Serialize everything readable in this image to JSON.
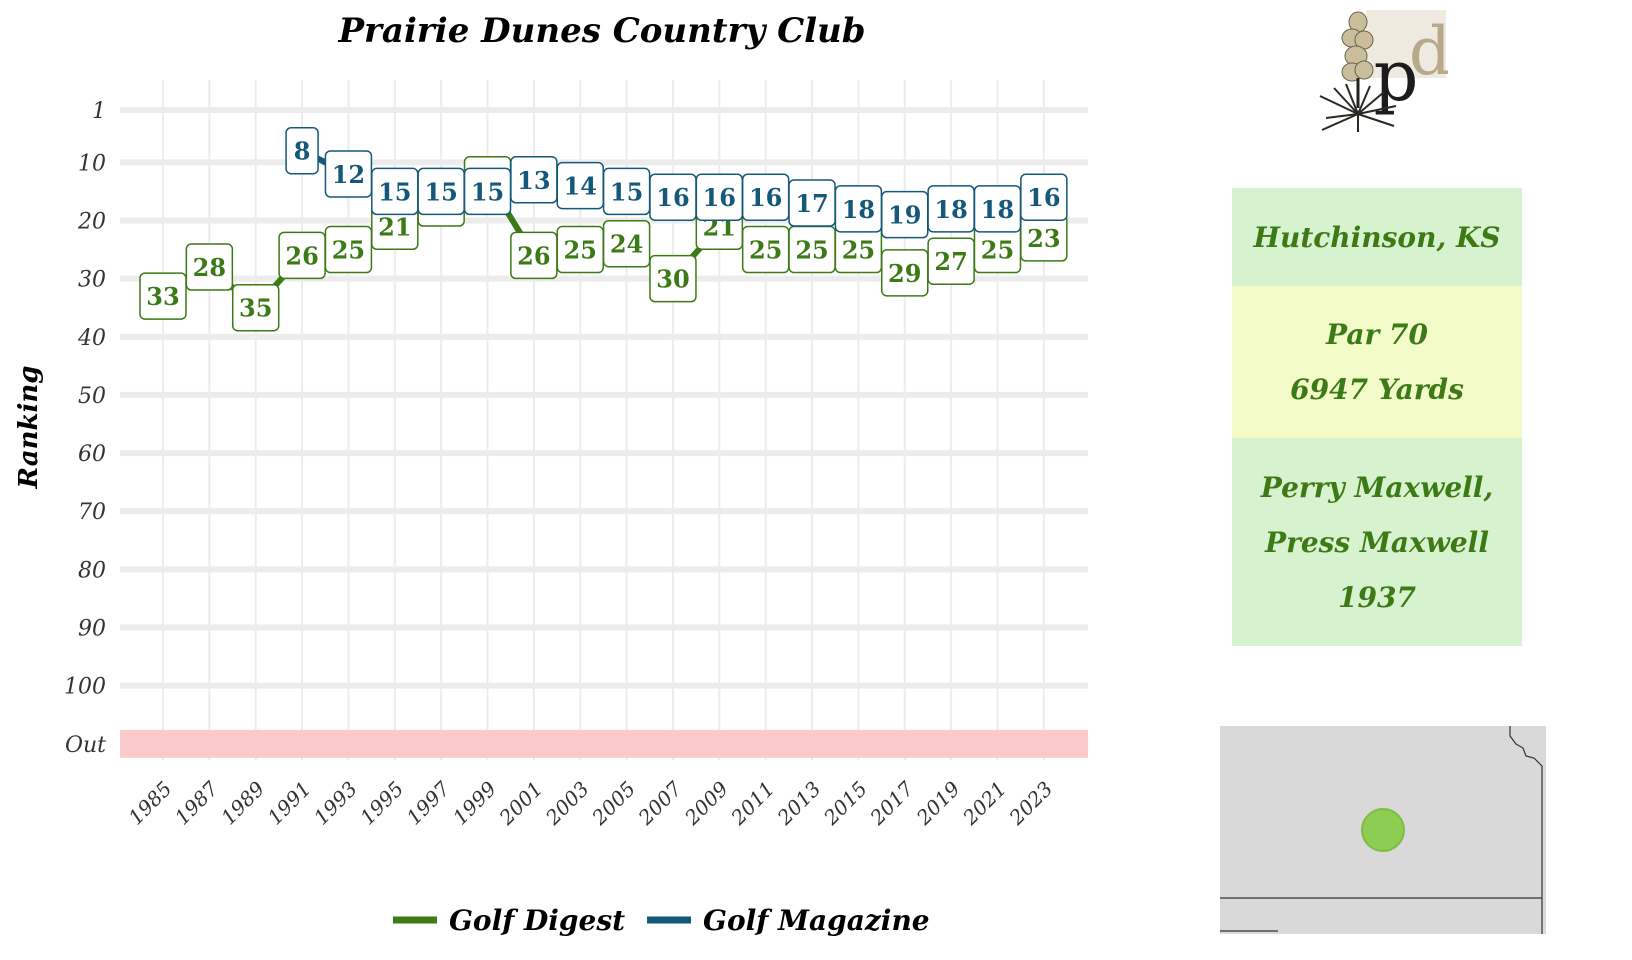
{
  "chart_data": {
    "type": "line",
    "title": "Prairie Dunes Country Club",
    "xlabel": "",
    "ylabel": "Ranking",
    "y_reversed": true,
    "y_ticks": [
      "1",
      "10",
      "20",
      "30",
      "40",
      "50",
      "60",
      "70",
      "80",
      "90",
      "100",
      "Out"
    ],
    "y_tick_values": [
      1,
      10,
      20,
      30,
      40,
      50,
      60,
      70,
      80,
      90,
      100,
      110
    ],
    "x_ticks": [
      "1985",
      "1987",
      "1989",
      "1991",
      "1993",
      "1995",
      "1997",
      "1999",
      "2001",
      "2003",
      "2005",
      "2007",
      "2009",
      "2011",
      "2013",
      "2015",
      "2017",
      "2019",
      "2021",
      "2023"
    ],
    "out_band_label": "Out",
    "grid": true,
    "legend_position": "bottom",
    "series": [
      {
        "name": "Golf Digest",
        "color": "#3c7a16",
        "x": [
          1985,
          1987,
          1989,
          1991,
          1993,
          1995,
          1997,
          1999,
          2001,
          2003,
          2005,
          2007,
          2009,
          2011,
          2013,
          2015,
          2017,
          2019,
          2021,
          2023
        ],
        "values": [
          33,
          28,
          35,
          26,
          25,
          21,
          17,
          13,
          26,
          25,
          24,
          30,
          21,
          25,
          25,
          25,
          29,
          27,
          25,
          23
        ]
      },
      {
        "name": "Golf Magazine",
        "color": "#14587a",
        "x": [
          1991,
          1993,
          1995,
          1997,
          1999,
          2001,
          2003,
          2005,
          2007,
          2009,
          2011,
          2013,
          2015,
          2017,
          2019,
          2021,
          2023
        ],
        "values": [
          8,
          12,
          15,
          15,
          15,
          13,
          14,
          15,
          16,
          16,
          16,
          17,
          18,
          19,
          18,
          18,
          16
        ]
      }
    ]
  },
  "info": {
    "location": "Hutchinson, KS",
    "par": "Par 70",
    "yards": "6947 Yards",
    "architect_line1": "Perry Maxwell,",
    "architect_line2": "Press Maxwell",
    "year": "1937"
  },
  "colors": {
    "digest": "#3c7a16",
    "magazine": "#14587a",
    "out_band": "#fbcaca",
    "grid": "#ececec",
    "panel_green": "#d7f2cf",
    "panel_yellow": "#f3fbc9",
    "map_dot": "#8ccd52"
  },
  "icons": {
    "logo": "yucca-logo-icon",
    "map": "kansas-map-icon"
  }
}
